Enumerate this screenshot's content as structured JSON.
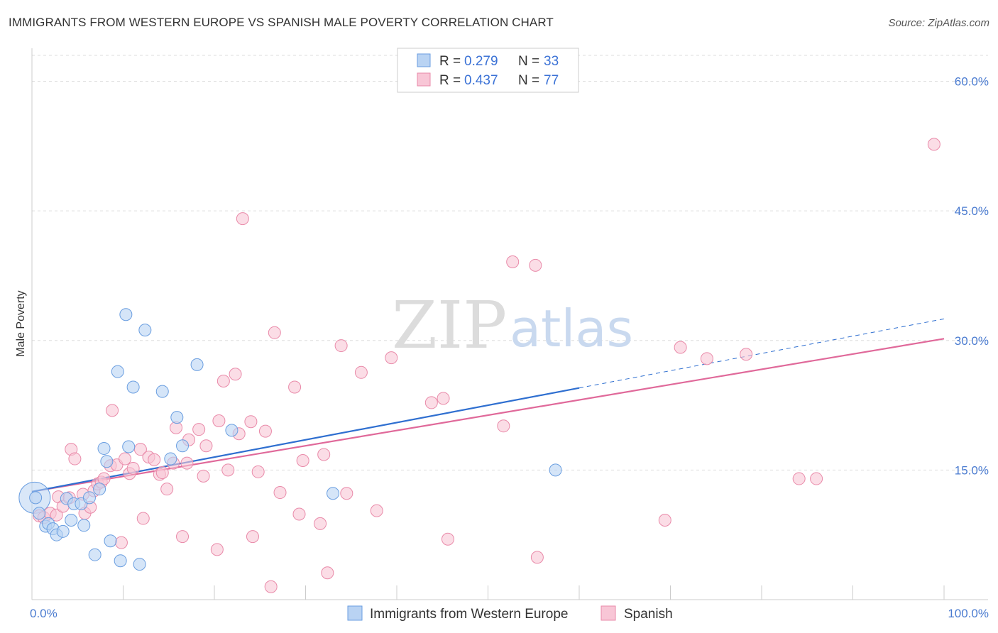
{
  "header": {
    "title": "IMMIGRANTS FROM WESTERN EUROPE VS SPANISH MALE POVERTY CORRELATION CHART",
    "source": "Source: ZipAtlas.com"
  },
  "watermark": {
    "zip": "ZIP",
    "atlas": "atlas"
  },
  "colors": {
    "blue_fill": "#b9d3f3",
    "blue_stroke": "#6a9ee0",
    "blue_line": "#2f6fd0",
    "pink_fill": "#f8c6d6",
    "pink_stroke": "#e98aa9",
    "pink_line": "#e0699a",
    "grid": "#dddddd",
    "tick_label": "#4a7bd0"
  },
  "legend": {
    "rows": [
      {
        "r_label": "R = ",
        "r_value": "0.279",
        "n_label": "N = ",
        "n_value": "33"
      },
      {
        "r_label": "R = ",
        "r_value": "0.437",
        "n_label": "N = ",
        "n_value": "77"
      }
    ]
  },
  "chart_data": {
    "type": "scatter",
    "title": "IMMIGRANTS FROM WESTERN EUROPE VS SPANISH MALE POVERTY CORRELATION CHART",
    "xlabel": "",
    "ylabel": "Male Poverty",
    "xlim": [
      0,
      100
    ],
    "ylim": [
      0,
      63
    ],
    "x_tick_labels": [
      "0.0%",
      "100.0%"
    ],
    "y_ticks": [
      15,
      30,
      45,
      60
    ],
    "y_tick_labels": [
      "15.0%",
      "30.0%",
      "45.0%",
      "60.0%"
    ],
    "grid": true,
    "legend_placement": "top-center",
    "series": [
      {
        "name": "Immigrants from Western Europe",
        "color": "#6a9ee0",
        "trend": {
          "x0": 0,
          "y0": 12.5,
          "x1": 60,
          "y1": 24.5,
          "dashed_to_x": 100,
          "dashed_to_y": 32.5
        },
        "points": [
          [
            0.4,
            11.8
          ],
          [
            0.8,
            10.0
          ],
          [
            1.5,
            8.5
          ],
          [
            1.8,
            8.8
          ],
          [
            2.3,
            8.2
          ],
          [
            2.7,
            7.5
          ],
          [
            3.4,
            7.9
          ],
          [
            3.8,
            11.7
          ],
          [
            4.3,
            9.2
          ],
          [
            4.6,
            11.1
          ],
          [
            5.4,
            11.1
          ],
          [
            5.7,
            8.6
          ],
          [
            6.3,
            11.8
          ],
          [
            6.9,
            5.2
          ],
          [
            7.4,
            12.8
          ],
          [
            7.9,
            17.5
          ],
          [
            8.2,
            16.0
          ],
          [
            8.6,
            6.8
          ],
          [
            9.4,
            26.4
          ],
          [
            9.7,
            4.5
          ],
          [
            10.3,
            33.0
          ],
          [
            10.6,
            17.7
          ],
          [
            11.1,
            24.6
          ],
          [
            11.8,
            4.1
          ],
          [
            12.4,
            31.2
          ],
          [
            14.3,
            24.1
          ],
          [
            15.2,
            16.3
          ],
          [
            15.9,
            21.1
          ],
          [
            16.5,
            17.8
          ],
          [
            18.1,
            27.2
          ],
          [
            21.9,
            19.6
          ],
          [
            33.0,
            12.3
          ],
          [
            57.4,
            15.0
          ]
        ]
      },
      {
        "name": "Spanish",
        "color": "#e98aa9",
        "trend": {
          "x0": 0,
          "y0": 12.5,
          "x1": 100,
          "y1": 30.2
        },
        "points": [
          [
            0.8,
            9.7
          ],
          [
            1.3,
            9.5
          ],
          [
            2.0,
            10.0
          ],
          [
            2.7,
            9.8
          ],
          [
            2.9,
            11.9
          ],
          [
            3.4,
            10.8
          ],
          [
            4.1,
            11.8
          ],
          [
            4.3,
            17.4
          ],
          [
            4.7,
            16.3
          ],
          [
            5.6,
            12.2
          ],
          [
            5.8,
            10.0
          ],
          [
            6.4,
            10.7
          ],
          [
            6.8,
            12.6
          ],
          [
            7.2,
            13.4
          ],
          [
            7.6,
            13.6
          ],
          [
            7.9,
            14.0
          ],
          [
            8.6,
            15.5
          ],
          [
            8.8,
            21.9
          ],
          [
            9.3,
            15.6
          ],
          [
            9.8,
            6.6
          ],
          [
            10.2,
            16.3
          ],
          [
            10.7,
            14.6
          ],
          [
            11.1,
            15.2
          ],
          [
            11.9,
            17.4
          ],
          [
            12.2,
            9.4
          ],
          [
            12.8,
            16.5
          ],
          [
            13.4,
            16.2
          ],
          [
            14.0,
            14.5
          ],
          [
            14.3,
            14.7
          ],
          [
            14.8,
            12.8
          ],
          [
            15.5,
            15.8
          ],
          [
            15.8,
            19.9
          ],
          [
            16.5,
            7.3
          ],
          [
            17.0,
            15.8
          ],
          [
            17.2,
            18.5
          ],
          [
            18.3,
            19.7
          ],
          [
            18.8,
            14.3
          ],
          [
            19.1,
            17.8
          ],
          [
            20.3,
            5.8
          ],
          [
            20.5,
            20.7
          ],
          [
            21.0,
            25.3
          ],
          [
            21.5,
            15.0
          ],
          [
            22.3,
            26.1
          ],
          [
            22.7,
            19.2
          ],
          [
            23.1,
            44.1
          ],
          [
            24.0,
            20.6
          ],
          [
            24.2,
            7.3
          ],
          [
            24.8,
            14.8
          ],
          [
            25.6,
            19.5
          ],
          [
            26.2,
            1.5
          ],
          [
            26.6,
            30.9
          ],
          [
            27.2,
            12.4
          ],
          [
            28.8,
            24.6
          ],
          [
            29.3,
            9.9
          ],
          [
            29.7,
            16.1
          ],
          [
            31.6,
            8.8
          ],
          [
            32.0,
            16.8
          ],
          [
            32.4,
            3.1
          ],
          [
            33.9,
            29.4
          ],
          [
            34.5,
            12.3
          ],
          [
            36.1,
            26.3
          ],
          [
            37.8,
            10.3
          ],
          [
            39.4,
            28.0
          ],
          [
            43.8,
            22.8
          ],
          [
            45.1,
            23.3
          ],
          [
            45.6,
            7.0
          ],
          [
            51.7,
            20.1
          ],
          [
            52.7,
            39.1
          ],
          [
            55.2,
            38.7
          ],
          [
            55.4,
            4.9
          ],
          [
            69.4,
            9.2
          ],
          [
            71.1,
            29.2
          ],
          [
            74.0,
            27.9
          ],
          [
            78.3,
            28.4
          ],
          [
            84.1,
            14.0
          ],
          [
            86.0,
            14.0
          ],
          [
            98.9,
            52.7
          ]
        ]
      }
    ]
  }
}
